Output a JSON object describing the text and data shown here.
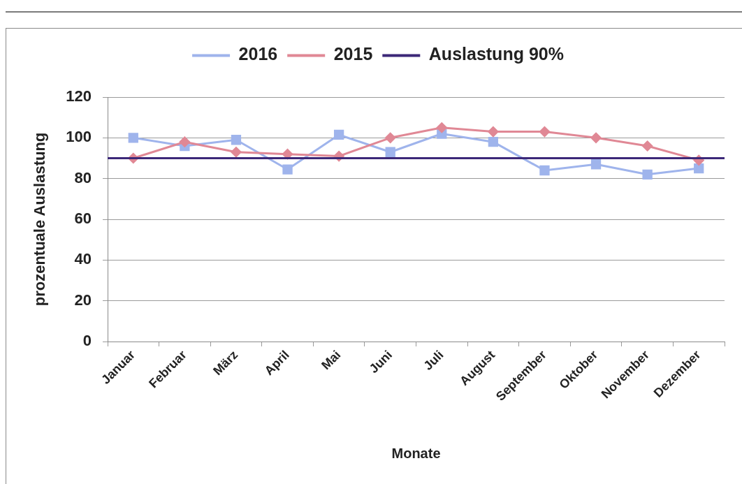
{
  "chart_data": {
    "type": "line",
    "xlabel": "Monate",
    "ylabel": "prozentuale Auslastung",
    "categories": [
      "Januar",
      "Februar",
      "März",
      "April",
      "Mai",
      "Juni",
      "Juli",
      "August",
      "September",
      "Oktober",
      "November",
      "Dezember"
    ],
    "series": [
      {
        "name": "2016",
        "color": "#9fb4ec",
        "marker": "square",
        "values": [
          100,
          96,
          99,
          84.5,
          101.5,
          93,
          102,
          98,
          84,
          87,
          82,
          85
        ]
      },
      {
        "name": "2015",
        "color": "#e08895",
        "marker": "diamond",
        "values": [
          90,
          98,
          93,
          92,
          91,
          100,
          105,
          103,
          103,
          100,
          96,
          89
        ]
      }
    ],
    "ylim": [
      0,
      120
    ],
    "yticks": [
      0,
      20,
      40,
      60,
      80,
      100,
      120
    ],
    "grid": "y",
    "legend": "top",
    "line_style": "solid",
    "ref_lines": [
      {
        "axis": "y",
        "value": 90,
        "label": "Auslastung 90%",
        "color": "#3c2878"
      }
    ]
  }
}
